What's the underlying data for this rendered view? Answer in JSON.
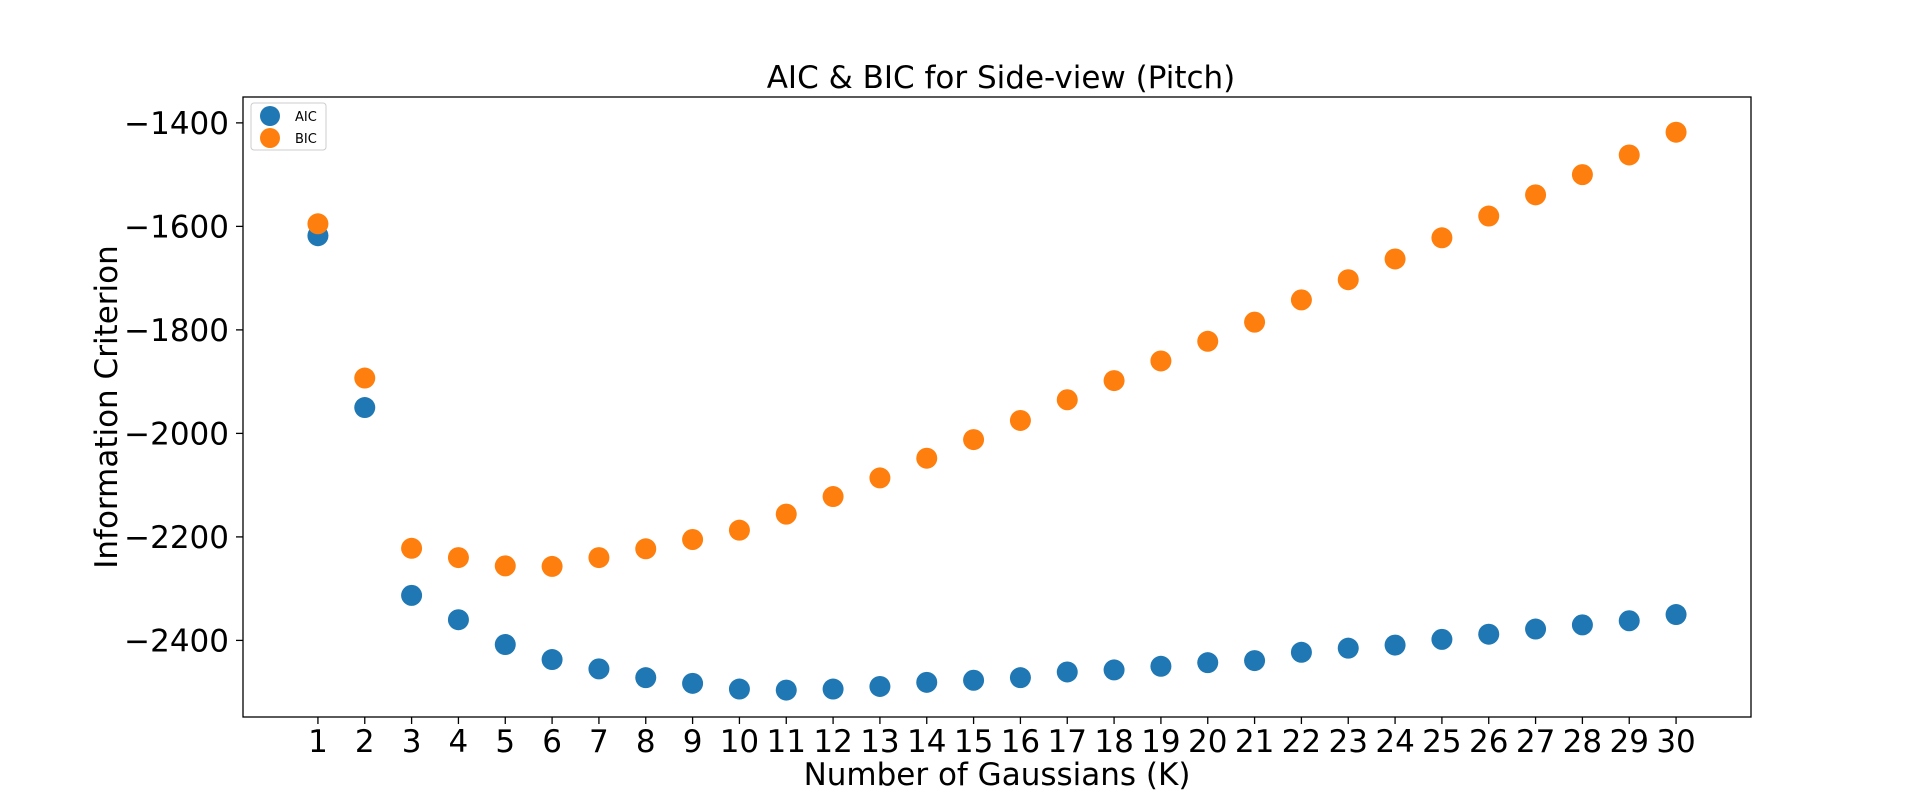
{
  "chart_data": {
    "type": "scatter",
    "title": "AIC & BIC for Side-view (Pitch)",
    "xlabel": "Number of Gaussians (K)",
    "ylabel": "Information Criterion",
    "xlim": [
      -0.6,
      31.6
    ],
    "ylim": [
      -2548,
      -1350
    ],
    "xticks": [
      1,
      2,
      3,
      4,
      5,
      6,
      7,
      8,
      9,
      10,
      11,
      12,
      13,
      14,
      15,
      16,
      17,
      18,
      19,
      20,
      21,
      22,
      23,
      24,
      25,
      26,
      27,
      28,
      29,
      30
    ],
    "yticks": [
      -1400,
      -1600,
      -1800,
      -2000,
      -2200,
      -2400
    ],
    "ytick_labels": [
      "−1400",
      "−1600",
      "−1800",
      "−2000",
      "−2200",
      "−2400"
    ],
    "grid": false,
    "legend_position": "top-left",
    "x": [
      1,
      2,
      3,
      4,
      5,
      6,
      7,
      8,
      9,
      10,
      11,
      12,
      13,
      14,
      15,
      16,
      17,
      18,
      19,
      20,
      21,
      22,
      23,
      24,
      25,
      26,
      27,
      28,
      29,
      30
    ],
    "series": [
      {
        "name": "AIC",
        "color": "#1f77b4",
        "values": [
          -1618,
          -1950,
          -2313,
          -2360,
          -2408,
          -2437,
          -2455,
          -2472,
          -2483,
          -2494,
          -2496,
          -2494,
          -2489,
          -2481,
          -2477,
          -2472,
          -2461,
          -2457,
          -2450,
          -2443,
          -2439,
          -2423,
          -2415,
          -2409,
          -2398,
          -2388,
          -2378,
          -2370,
          -2362,
          -2350
        ]
      },
      {
        "name": "BIC",
        "color": "#ff7f0e",
        "values": [
          -1595,
          -1893,
          -2222,
          -2240,
          -2256,
          -2257,
          -2240,
          -2223,
          -2205,
          -2187,
          -2156,
          -2122,
          -2086,
          -2048,
          -2012,
          -1975,
          -1935,
          -1898,
          -1860,
          -1822,
          -1785,
          -1742,
          -1703,
          -1663,
          -1622,
          -1580,
          -1539,
          -1500,
          -1462,
          -1418
        ]
      }
    ]
  }
}
